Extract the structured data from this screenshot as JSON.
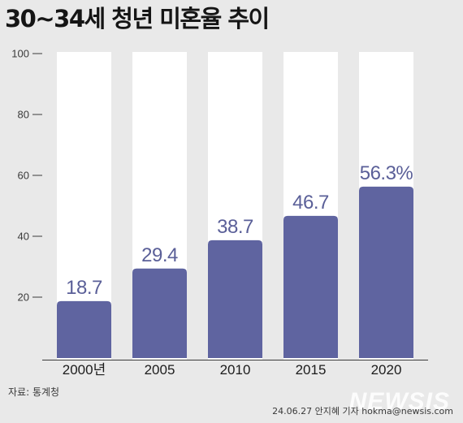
{
  "colors": {
    "background": "#e9e9e9",
    "track": "#ffffff",
    "bar": "#5f64a0",
    "value_label": "#5a5f98"
  },
  "chart_data": {
    "type": "bar",
    "title": "30~34세 청년 미혼율 추이",
    "categories": [
      "2000년",
      "2005",
      "2010",
      "2015",
      "2020"
    ],
    "values": [
      18.7,
      29.4,
      38.7,
      46.7,
      56.3
    ],
    "value_labels": [
      "18.7",
      "29.4",
      "38.7",
      "46.7",
      "56.3%"
    ],
    "ylim": [
      0,
      100
    ],
    "yticks": [
      20,
      40,
      60,
      80,
      100
    ],
    "xlabel": "",
    "ylabel": "",
    "grid": false
  },
  "footer": {
    "source": "자료: 통계청",
    "credit": "24.06.27 안지혜 기자 hokma@newsis.com",
    "watermark": "NEWSIS"
  }
}
